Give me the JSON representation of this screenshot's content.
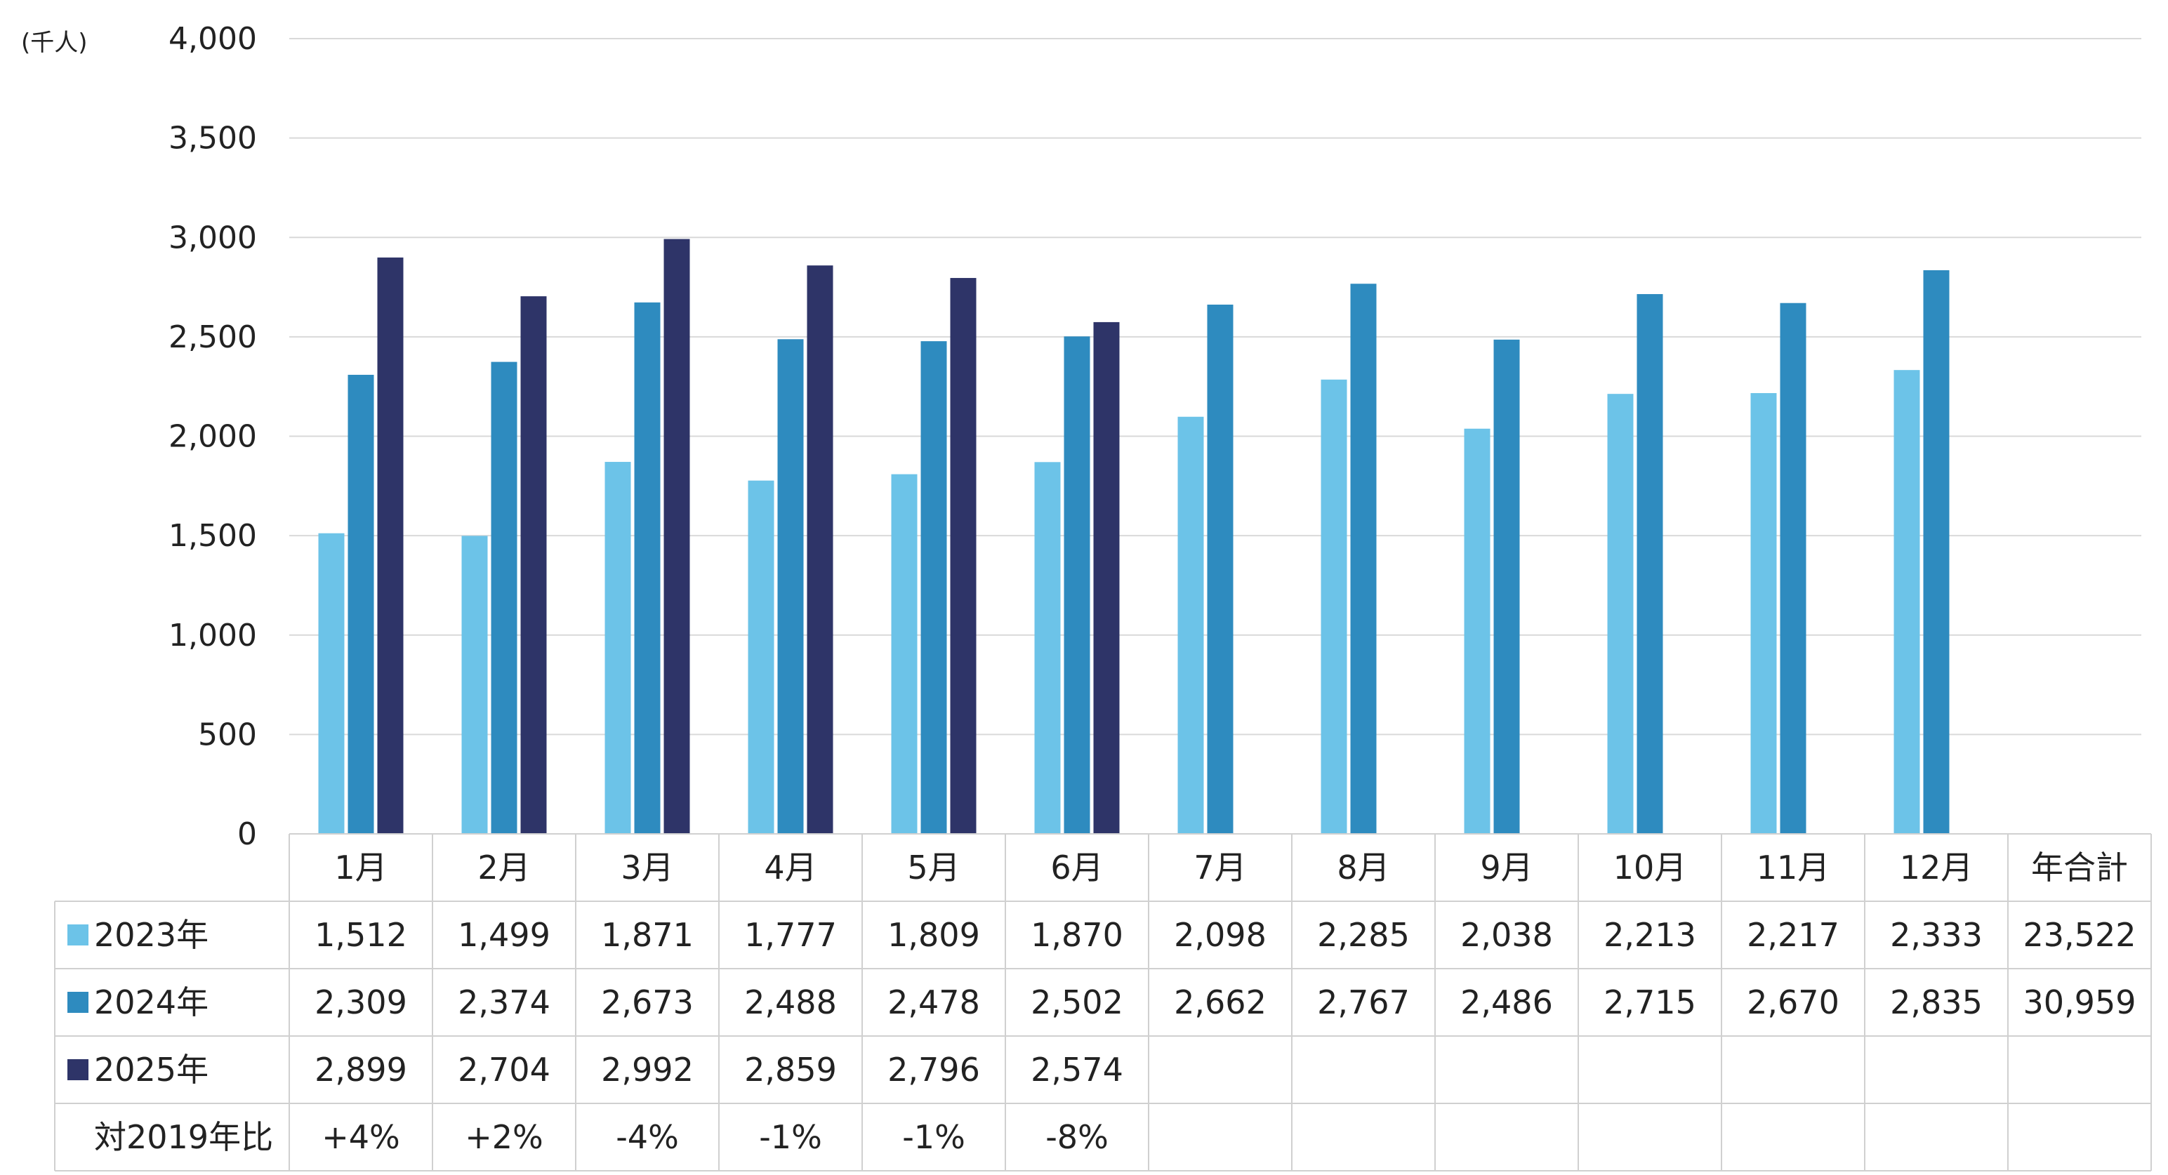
{
  "chart_data": {
    "type": "bar",
    "ylabel": "(千人)",
    "ylim": [
      0,
      4000
    ],
    "yticks": [
      "0",
      "500",
      "1,000",
      "1,500",
      "2,000",
      "2,500",
      "3,000",
      "3,500",
      "4,000"
    ],
    "grid": true,
    "legend": "data-table",
    "categories": [
      "1月",
      "2月",
      "3月",
      "4月",
      "5月",
      "6月",
      "7月",
      "8月",
      "9月",
      "10月",
      "11月",
      "12月"
    ],
    "total_header": "年合計",
    "series": [
      {
        "name": "2023年",
        "color": "#6CC3E8",
        "values": [
          1512,
          1499,
          1871,
          1777,
          1809,
          1870,
          2098,
          2285,
          2038,
          2213,
          2217,
          2333
        ],
        "labels": [
          "1,512",
          "1,499",
          "1,871",
          "1,777",
          "1,809",
          "1,870",
          "2,098",
          "2,285",
          "2,038",
          "2,213",
          "2,217",
          "2,333"
        ],
        "total": "23,522"
      },
      {
        "name": "2024年",
        "color": "#2E8BBF",
        "values": [
          2309,
          2374,
          2673,
          2488,
          2478,
          2502,
          2662,
          2767,
          2486,
          2715,
          2670,
          2835
        ],
        "labels": [
          "2,309",
          "2,374",
          "2,673",
          "2,488",
          "2,478",
          "2,502",
          "2,662",
          "2,767",
          "2,486",
          "2,715",
          "2,670",
          "2,835"
        ],
        "total": "30,959"
      },
      {
        "name": "2025年",
        "color": "#2E3468",
        "values": [
          2899,
          2704,
          2992,
          2859,
          2796,
          2574,
          null,
          null,
          null,
          null,
          null,
          null
        ],
        "labels": [
          "2,899",
          "2,704",
          "2,992",
          "2,859",
          "2,796",
          "2,574",
          "",
          "",
          "",
          "",
          "",
          ""
        ],
        "total": ""
      }
    ],
    "ratio_row": {
      "label": "対2019年比",
      "values": [
        "+4%",
        "+2%",
        "-4%",
        "-1%",
        "-1%",
        "-8%",
        "",
        "",
        "",
        "",
        "",
        ""
      ],
      "total": ""
    }
  }
}
